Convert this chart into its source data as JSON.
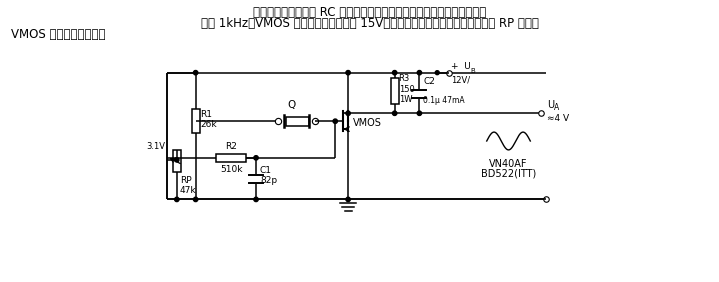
{
  "bg_color": "#ffffff",
  "line_color": "#000000",
  "title_line1": "晶振电路振荡频率同 RC 环节的参数有关。在图中所标参数情况下振荡频",
  "title_line2": "率为 1kHz。VMOS 移相发生器可提供约 15V（有效值）的输出电压，利用电位器 RP 可调整",
  "title_line3": "VMOS 晶体管的工作点。",
  "labels": {
    "R1": "R1\n26k",
    "Q": "Q",
    "VMOS": "VMOS",
    "R3": "R3\n150\n1W",
    "C2_label": "C2",
    "C2_val": "0.1μ 47mA",
    "Vcc": "+  U",
    "Vcc_sub": "B",
    "Vcc_val": "12V/",
    "UA": "U",
    "UA_sub": "A",
    "UA_val": "≈4 V",
    "R2": "R2\n510k",
    "RP": "RP\n47k",
    "v31": "3.1V",
    "C1": "C1\n82p",
    "transistor1": "VN40AF",
    "transistor2": "BD522(ITT)"
  }
}
